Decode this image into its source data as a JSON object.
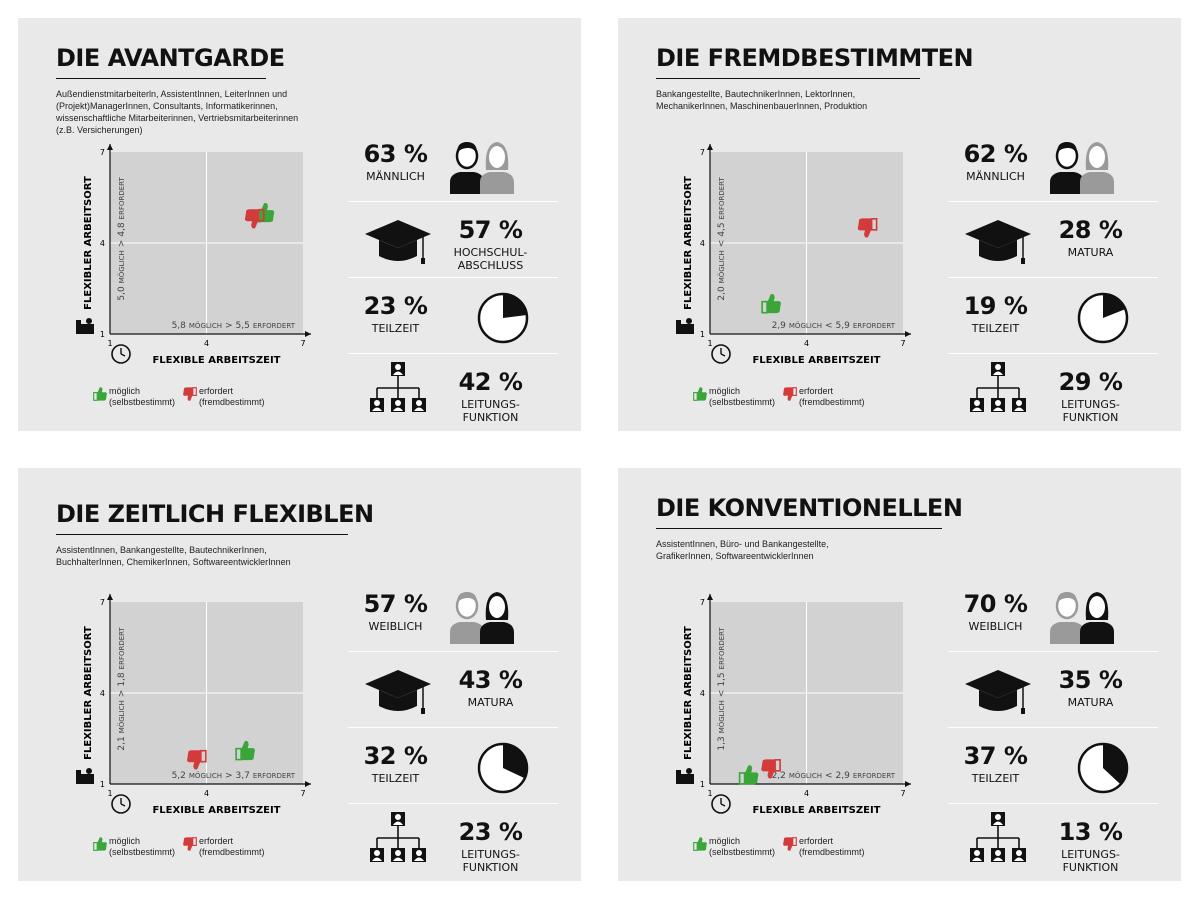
{
  "colors": {
    "panel_bg": "#e9e9ea",
    "plot_bg": "#d2d2d3",
    "green": "#3aa63a",
    "red": "#d33a3a",
    "dark": "#111111",
    "gray": "#9a9a9a"
  },
  "legend": {
    "possible": "möglich",
    "possible_note": "(selbstbestimmt)",
    "required": "erfordert",
    "required_note": "(fremdbestimmt)"
  },
  "panels": [
    {
      "title": "DIE AVANTGARDE",
      "subtitle": [
        "Außendienstmitarbeiterln, AssistentInnen, LeiterInnen und",
        "(Projekt)ManagerInnen, Consultants, Informatikerinnen,",
        "wissenschaftliche Mitarbeiterinnen, Vertriebsmitarbeiterinnen",
        "(z.B. Versicherungen)"
      ],
      "stats": [
        {
          "icon": "people-icon",
          "pct": "63 %",
          "label": [
            "MÄNNLICH"
          ],
          "highlight": "male"
        },
        {
          "icon": "graduation-cap-icon",
          "pct": "57 %",
          "label": [
            "HOCHSCHUL-",
            "ABSCHLUSS"
          ]
        },
        {
          "icon": "clock-pie-icon",
          "pct": "23 %",
          "label": [
            "TEILZEIT"
          ],
          "fraction": 0.23
        },
        {
          "icon": "org-chart-icon",
          "pct": "42 %",
          "label": [
            "LEITUNGS-",
            "FUNKTION"
          ]
        }
      ]
    },
    {
      "title": "DIE FREMDBESTIMMTEN",
      "subtitle": [
        "Bankangestellte, BautechnikerInnen, LektorInnen,",
        "MechanikerInnen, MaschinenbauerInnen, Produktion"
      ],
      "stats": [
        {
          "icon": "people-icon",
          "pct": "62 %",
          "label": [
            "MÄNNLICH"
          ],
          "highlight": "male"
        },
        {
          "icon": "graduation-cap-icon",
          "pct": "28 %",
          "label": [
            "MATURA"
          ]
        },
        {
          "icon": "clock-pie-icon",
          "pct": "19 %",
          "label": [
            "TEILZEIT"
          ],
          "fraction": 0.19
        },
        {
          "icon": "org-chart-icon",
          "pct": "29 %",
          "label": [
            "LEITUNGS-",
            "FUNKTION"
          ]
        }
      ]
    },
    {
      "title": "DIE ZEITLICH FLEXIBLEN",
      "subtitle": [
        "AssistentInnen, Bankangestellte, BautechnikerInnen,",
        "BuchhalterInnen, ChemikerInnen, SoftwareentwicklerInnen"
      ],
      "stats": [
        {
          "icon": "people-icon",
          "pct": "57 %",
          "label": [
            "WEIBLICH"
          ],
          "highlight": "female"
        },
        {
          "icon": "graduation-cap-icon",
          "pct": "43 %",
          "label": [
            "MATURA"
          ]
        },
        {
          "icon": "clock-pie-icon",
          "pct": "32 %",
          "label": [
            "TEILZEIT"
          ],
          "fraction": 0.32
        },
        {
          "icon": "org-chart-icon",
          "pct": "23 %",
          "label": [
            "LEITUNGS-",
            "FUNKTION"
          ]
        }
      ]
    },
    {
      "title": "DIE KONVENTIONELLEN",
      "subtitle": [
        "AssistentInnen, Büro- und Bankangestellte,",
        "GrafikerInnen, SoftwareentwicklerInnen"
      ],
      "stats": [
        {
          "icon": "people-icon",
          "pct": "70 %",
          "label": [
            "WEIBLICH"
          ],
          "highlight": "female"
        },
        {
          "icon": "graduation-cap-icon",
          "pct": "35 %",
          "label": [
            "MATURA"
          ]
        },
        {
          "icon": "clock-pie-icon",
          "pct": "37 %",
          "label": [
            "TEILZEIT"
          ],
          "fraction": 0.37
        },
        {
          "icon": "org-chart-icon",
          "pct": "13 %",
          "label": [
            "LEITUNGS-",
            "FUNKTION"
          ]
        }
      ]
    }
  ],
  "chart_data": [
    {
      "type": "scatter",
      "title": "DIE AVANTGARDE",
      "xlabel": "FLEXIBLE ARBEITSZEIT",
      "ylabel": "FLEXIBLER ARBEITSORT",
      "xlim": [
        1,
        7
      ],
      "ylim": [
        1,
        7
      ],
      "xticks": [
        1,
        4,
        7
      ],
      "yticks": [
        1,
        4,
        7
      ],
      "grid": true,
      "series": [
        {
          "name": "möglich (selbstbestimmt)",
          "color": "#3aa63a",
          "x": [
            5.8
          ],
          "y": [
            5.0
          ]
        },
        {
          "name": "erfordert (fremdbestimmt)",
          "color": "#d33a3a",
          "x": [
            5.5
          ],
          "y": [
            4.8
          ]
        }
      ],
      "annotations": {
        "x_text": [
          "5,8",
          "MÖGLICH",
          ">",
          "5,5",
          "ERFORDERT"
        ],
        "y_text": [
          "5,0",
          "MÖGLICH",
          ">",
          "4,8",
          "ERFORDERT"
        ]
      }
    },
    {
      "type": "scatter",
      "title": "DIE FREMDBESTIMMTEN",
      "xlabel": "FLEXIBLE ARBEITSZEIT",
      "ylabel": "FLEXIBLER ARBEITSORT",
      "xlim": [
        1,
        7
      ],
      "ylim": [
        1,
        7
      ],
      "xticks": [
        1,
        4,
        7
      ],
      "yticks": [
        1,
        4,
        7
      ],
      "grid": true,
      "series": [
        {
          "name": "möglich (selbstbestimmt)",
          "color": "#3aa63a",
          "x": [
            2.9
          ],
          "y": [
            2.0
          ]
        },
        {
          "name": "erfordert (fremdbestimmt)",
          "color": "#d33a3a",
          "x": [
            5.9
          ],
          "y": [
            4.5
          ]
        }
      ],
      "annotations": {
        "x_text": [
          "2,9",
          "MÖGLICH",
          "<",
          "5,9",
          "ERFORDERT"
        ],
        "y_text": [
          "2,0",
          "MÖGLICH",
          "<",
          "4,5",
          "ERFORDERT"
        ]
      }
    },
    {
      "type": "scatter",
      "title": "DIE ZEITLICH FLEXIBLEN",
      "xlabel": "FLEXIBLE ARBEITSZEIT",
      "ylabel": "FLEXIBLER ARBEITSORT",
      "xlim": [
        1,
        7
      ],
      "ylim": [
        1,
        7
      ],
      "xticks": [
        1,
        4,
        7
      ],
      "yticks": [
        1,
        4,
        7
      ],
      "grid": true,
      "series": [
        {
          "name": "möglich (selbstbestimmt)",
          "color": "#3aa63a",
          "x": [
            5.2
          ],
          "y": [
            2.1
          ]
        },
        {
          "name": "erfordert (fremdbestimmt)",
          "color": "#d33a3a",
          "x": [
            3.7
          ],
          "y": [
            1.8
          ]
        }
      ],
      "annotations": {
        "x_text": [
          "5,2",
          "MÖGLICH",
          ">",
          "3,7",
          "ERFORDERT"
        ],
        "y_text": [
          "2,1",
          "MÖGLICH",
          ">",
          "1,8",
          "ERFORDERT"
        ]
      }
    },
    {
      "type": "scatter",
      "title": "DIE KONVENTIONELLEN",
      "xlabel": "FLEXIBLE ARBEITSZEIT",
      "ylabel": "FLEXIBLER ARBEITSORT",
      "xlim": [
        1,
        7
      ],
      "ylim": [
        1,
        7
      ],
      "xticks": [
        1,
        4,
        7
      ],
      "yticks": [
        1,
        4,
        7
      ],
      "grid": true,
      "series": [
        {
          "name": "möglich (selbstbestimmt)",
          "color": "#3aa63a",
          "x": [
            2.2
          ],
          "y": [
            1.3
          ]
        },
        {
          "name": "erfordert (fremdbestimmt)",
          "color": "#d33a3a",
          "x": [
            2.9
          ],
          "y": [
            1.5
          ]
        }
      ],
      "annotations": {
        "x_text": [
          "2,2",
          "MÖGLICH",
          "<",
          "2,9",
          "ERFORDERT"
        ],
        "y_text": [
          "1,3",
          "MÖGLICH",
          "<",
          "1,5",
          "ERFORDERT"
        ]
      }
    }
  ]
}
